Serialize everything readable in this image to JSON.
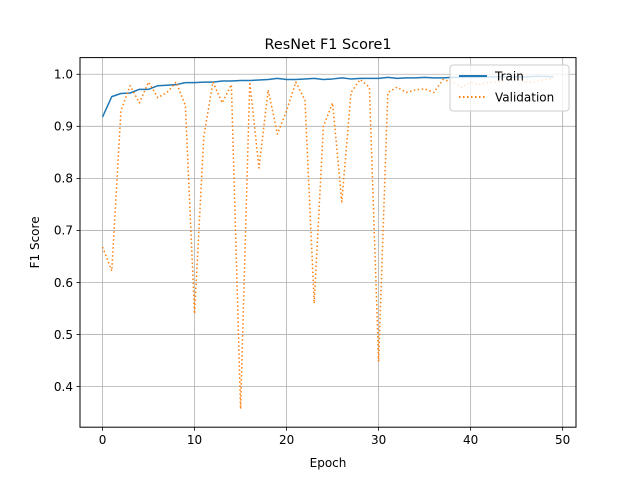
{
  "chart_data": {
    "type": "line",
    "title": "ResNet F1 Score1",
    "xlabel": "Epoch",
    "ylabel": "F1 Score",
    "xlim": [
      -2.45,
      51.45
    ],
    "ylim": [
      0.322,
      1.032
    ],
    "xticks": [
      0,
      10,
      20,
      30,
      40,
      50
    ],
    "yticks": [
      0.4,
      0.5,
      0.6,
      0.7,
      0.8,
      0.9,
      1.0
    ],
    "xtick_labels": [
      "0",
      "10",
      "20",
      "30",
      "40",
      "50"
    ],
    "ytick_labels": [
      "0.4",
      "0.5",
      "0.6",
      "0.7",
      "0.8",
      "0.9",
      "1.0"
    ],
    "grid": true,
    "legend_position": "upper right",
    "x": [
      0,
      1,
      2,
      3,
      4,
      5,
      6,
      7,
      8,
      9,
      10,
      11,
      12,
      13,
      14,
      15,
      16,
      17,
      18,
      19,
      20,
      21,
      22,
      23,
      24,
      25,
      26,
      27,
      28,
      29,
      30,
      31,
      32,
      33,
      34,
      35,
      36,
      37,
      38,
      39,
      40,
      41,
      42,
      43,
      44,
      45,
      46,
      47,
      48,
      49
    ],
    "series": [
      {
        "name": "Train",
        "color": "#1f77b4",
        "style": "solid",
        "values": [
          0.918,
          0.957,
          0.963,
          0.964,
          0.971,
          0.971,
          0.978,
          0.979,
          0.98,
          0.984,
          0.984,
          0.985,
          0.985,
          0.987,
          0.987,
          0.988,
          0.988,
          0.989,
          0.99,
          0.992,
          0.99,
          0.99,
          0.991,
          0.992,
          0.99,
          0.991,
          0.993,
          0.991,
          0.992,
          0.992,
          0.992,
          0.994,
          0.992,
          0.993,
          0.993,
          0.994,
          0.993,
          0.993,
          0.994,
          0.994,
          0.994,
          0.994,
          0.995,
          0.995,
          0.995,
          0.995,
          0.995,
          0.996,
          0.996,
          0.995
        ]
      },
      {
        "name": "Validation",
        "color": "#ff7f0e",
        "style": "dotted",
        "values": [
          0.668,
          0.622,
          0.93,
          0.978,
          0.945,
          0.985,
          0.955,
          0.965,
          0.985,
          0.94,
          0.54,
          0.88,
          0.985,
          0.945,
          0.98,
          0.357,
          0.985,
          0.82,
          0.97,
          0.885,
          0.93,
          0.985,
          0.95,
          0.56,
          0.9,
          0.945,
          0.755,
          0.965,
          0.99,
          0.975,
          0.448,
          0.965,
          0.975,
          0.965,
          0.97,
          0.972,
          0.965,
          0.99,
          0.985,
          0.975,
          0.985,
          0.98,
          0.985,
          0.985,
          0.99,
          0.99,
          0.985,
          0.985,
          0.99,
          0.992
        ]
      }
    ]
  }
}
